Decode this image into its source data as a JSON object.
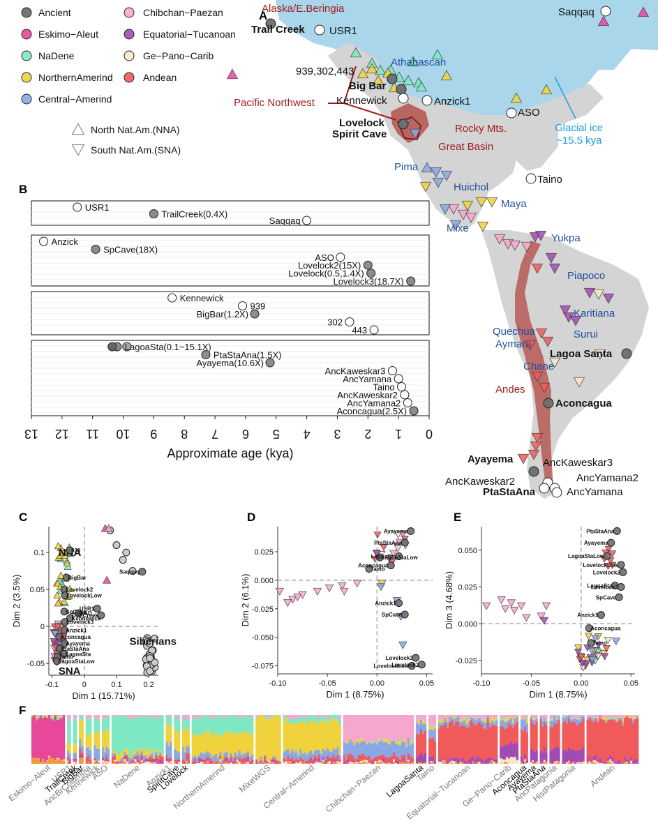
{
  "colors": {
    "Ancient": "#6e6e6e",
    "Eskimo-Aleut": "#e8479a",
    "NaDene": "#7ee8c4",
    "NorthernAmerind": "#f0d23c",
    "Central-Amerind": "#8aa8e6",
    "Chibchan-Paezan": "#f7a6d0",
    "Equatorial-Tucanoan": "#a04cb4",
    "Ge-Pano-Carib": "#f7e6c8",
    "Andean": "#f05a5a",
    "ice": "#a9d6ea",
    "land": "#d4d4d4",
    "route": "#b0403a",
    "red_label": "#9e1b1b",
    "blue_label": "#1f4e9c",
    "glacial_label": "#1aa0d8"
  },
  "panels": {
    "A": "A",
    "B": "B",
    "C": "C",
    "D": "D",
    "E": "E",
    "F": "F"
  },
  "legend": {
    "items": [
      "Ancient",
      "Eskimo−Aleut",
      "NaDene",
      "NorthernAmerind",
      "Central−Amerind",
      "Chibchan−Paezan",
      "Equatorial−Tucanoan",
      "Ge−Pano−Carib",
      "Andean"
    ],
    "keys": [
      "Ancient",
      "Eskimo-Aleut",
      "NaDene",
      "NorthernAmerind",
      "Central-Amerind",
      "Chibchan-Paezan",
      "Equatorial-Tucanoan",
      "Ge-Pano-Carib",
      "Andean"
    ],
    "nna": "North Nat.Am.(NNA)",
    "sna": "South Nat.Am.(SNA)"
  },
  "map_labels": {
    "alaska": "Alaska/E.Beringia",
    "trail_creek": "Trail Creek",
    "usr1": "USR1",
    "saqqaq": "Saqqaq",
    "athabascan": "Athabascan",
    "n939": "939,302,443",
    "big_bar": "Big Bar",
    "pacific_nw": "Pacific Northwest",
    "kennewick": "Kennewick",
    "anzick1": "Anzick1",
    "aso": "ASO",
    "lovelock": "Lovelock",
    "spirit_cave": "Spirit Cave",
    "rocky": "Rocky Mts.",
    "great_basin": "Great Basin",
    "glacial": "Glacial ice",
    "glacial_age": "~15.5 kya",
    "pima": "Pima",
    "huichol": "Huichol",
    "taino": "Taino",
    "maya": "Maya",
    "mixe": "Mixe",
    "yukpa": "Yukpa",
    "piapoco": "Piapoco",
    "karitiana": "Karitiana",
    "surui": "Surui",
    "quechua": "Quechua",
    "aymara": "Aymara",
    "lagoa_santa": "Lagoa Santa",
    "chane": "Chane",
    "andes": "Andes",
    "aconcagua": "Aconcagua",
    "ayayema": "Ayayema",
    "anckaweskar3": "AncKaweskar3",
    "anckaweskar2": "AncKaweskar2",
    "ancyamana2": "AncYamana2",
    "ptastaana": "PtaStaAna",
    "ancyamana": "AncYamana"
  },
  "chart_data": [
    {
      "panel": "B",
      "type": "scatter",
      "xlabel": "Approximate age (kya)",
      "xlim": [
        13,
        0
      ],
      "x_ticks": [
        13,
        12,
        11,
        10,
        9,
        8,
        7,
        6,
        5,
        4,
        3,
        2,
        1,
        0
      ],
      "groups": [
        {
          "points": [
            {
              "label": "USR1",
              "age": 11.5,
              "row": 0,
              "filled": false
            },
            {
              "label": "TrailCreek(0.4X)",
              "age": 9.0,
              "row": 1,
              "filled": true
            },
            {
              "label": "Saqqaq",
              "age": 4.0,
              "row": 2,
              "filled": false
            }
          ]
        },
        {
          "points": [
            {
              "label": "Anzick",
              "age": 12.6,
              "row": 0,
              "filled": false
            },
            {
              "label": "SpCave(18X)",
              "age": 10.9,
              "row": 1,
              "filled": true
            },
            {
              "label": "ASO",
              "age": 2.9,
              "row": 2,
              "filled": false
            },
            {
              "label": "Lovelock2(15X)",
              "age": 2.0,
              "row": 3,
              "filled": true
            },
            {
              "label": "Lovelock(0.5,1.4X)",
              "age": 1.9,
              "row": 4,
              "filled": true
            },
            {
              "label": "Lovelock3(18.7X)",
              "age": 0.6,
              "row": 5,
              "filled": true
            }
          ]
        },
        {
          "points": [
            {
              "label": "Kennewick",
              "age": 8.4,
              "row": 0,
              "filled": false
            },
            {
              "label": "939",
              "age": 6.1,
              "row": 1,
              "filled": false
            },
            {
              "label": "BigBar(1.2X)",
              "age": 5.7,
              "row": 2,
              "filled": true
            },
            {
              "label": "302",
              "age": 2.6,
              "row": 3,
              "filled": false
            },
            {
              "label": "443",
              "age": 1.8,
              "row": 4,
              "filled": false
            }
          ]
        },
        {
          "points": [
            {
              "label": "LagoaSta(0.1−15.1X)",
              "age": 10.2,
              "row": 0,
              "filled": true
            },
            {
              "label": "PtaStaAna(1.5X)",
              "age": 7.3,
              "row": 1,
              "filled": true
            },
            {
              "label": "Ayayema(10.6X)",
              "age": 5.2,
              "row": 2,
              "filled": true
            },
            {
              "label": "AncKaweskar3",
              "age": 1.2,
              "row": 3,
              "filled": false
            },
            {
              "label": "AncYamana",
              "age": 1.0,
              "row": 4,
              "filled": false
            },
            {
              "label": "Taino",
              "age": 0.9,
              "row": 5,
              "filled": false
            },
            {
              "label": "AncKaweskar2",
              "age": 0.8,
              "row": 6,
              "filled": false
            },
            {
              "label": "AncYamana2",
              "age": 0.7,
              "row": 7,
              "filled": false
            },
            {
              "label": "Aconcagua(2.5X)",
              "age": 0.5,
              "row": 8,
              "filled": true
            }
          ]
        }
      ]
    },
    {
      "panel": "C",
      "type": "scatter",
      "xlabel": "Dim 1 (15.71%)",
      "ylabel": "Dim 2 (3.5%)",
      "xlim": [
        -0.11,
        0.23
      ],
      "ylim": [
        -0.066,
        0.135
      ],
      "x_ticks": [
        -0.1,
        0.0,
        0.1,
        0.2
      ],
      "y_ticks": [
        -0.05,
        0.0,
        0.05,
        0.1
      ],
      "group_labels": {
        "nna": "NNA",
        "sna": "SNA",
        "siberians": "Siberians"
      },
      "points": [
        {
          "label": "939",
          "x": -0.045,
          "y": 0.103,
          "group": "Ancient"
        },
        {
          "label": "Saqqaq",
          "x": 0.18,
          "y": 0.074,
          "group": "Ancient"
        },
        {
          "label": "BigBar",
          "x": -0.055,
          "y": 0.066,
          "group": "Ancient"
        },
        {
          "label": "Lovelock2",
          "x": -0.062,
          "y": 0.05,
          "group": "Ancient"
        },
        {
          "label": "LovelockLow",
          "x": -0.06,
          "y": 0.042,
          "group": "Ancient"
        },
        {
          "label": "USR1",
          "x": 0.04,
          "y": 0.024,
          "group": "Ancient"
        },
        {
          "label": "SpCave",
          "x": -0.062,
          "y": 0.02,
          "group": "Ancient"
        },
        {
          "label": "ASO",
          "x": -0.018,
          "y": 0.018,
          "group": "Ancient"
        },
        {
          "label": "Kennewick",
          "x": -0.044,
          "y": 0.011,
          "group": "Ancient"
        },
        {
          "label": "TrailCreek",
          "x": 0.052,
          "y": 0.015,
          "group": "Ancient"
        },
        {
          "label": "Lovelock3",
          "x": -0.06,
          "y": 0.006,
          "group": "Ancient"
        },
        {
          "label": "Anzick1",
          "x": -0.062,
          "y": -0.005,
          "group": "Ancient"
        },
        {
          "label": "Aconcagua",
          "x": -0.078,
          "y": -0.014,
          "group": "Ancient"
        },
        {
          "label": "Ayayema",
          "x": -0.062,
          "y": -0.023,
          "group": "Ancient"
        },
        {
          "label": "PtaStaAna",
          "x": -0.076,
          "y": -0.03,
          "group": "Ancient"
        },
        {
          "label": "LagoaSta",
          "x": -0.062,
          "y": -0.037,
          "group": "Ancient"
        },
        {
          "label": "Taino",
          "x": -0.083,
          "y": -0.041,
          "group": "Ancient"
        },
        {
          "label": "LagoaStaLow",
          "x": -0.085,
          "y": -0.047,
          "group": "Ancient"
        }
      ]
    },
    {
      "panel": "D",
      "type": "scatter",
      "xlabel": "Dim 1 (8.75%)",
      "ylabel": "Dim 2 (6.1%)",
      "xlim": [
        -0.1,
        0.056
      ],
      "ylim": [
        -0.082,
        0.047
      ],
      "x_ticks": [
        -0.1,
        -0.05,
        0.0,
        0.05
      ],
      "x_tick_labels": [
        "-0.10",
        "-0.05",
        "0.00",
        "0.05"
      ],
      "y_ticks": [
        -0.075,
        -0.05,
        -0.025,
        0.0,
        0.025
      ],
      "y_tick_labels": [
        "-0.075",
        "-0.050",
        "-0.025",
        "0.000",
        "0.025"
      ],
      "points": [
        {
          "label": "Ayayema",
          "x": 0.034,
          "y": 0.043,
          "group": "Ancient"
        },
        {
          "label": "PtaStaAna",
          "x": 0.028,
          "y": 0.033,
          "group": "Ancient"
        },
        {
          "label": "LagoaSta",
          "x": 0.022,
          "y": 0.021,
          "group": "Ancient"
        },
        {
          "label": "LagoaStaLow",
          "x": 0.003,
          "y": 0.02,
          "group": "Ancient"
        },
        {
          "label": "Taino",
          "x": -0.008,
          "y": 0.01,
          "group": "Ancient"
        },
        {
          "label": "Aconcagua",
          "x": 0.014,
          "y": 0.013,
          "group": "Ancient"
        },
        {
          "label": "Anzick1",
          "x": 0.022,
          "y": -0.02,
          "group": "Ancient"
        },
        {
          "label": "SpCave",
          "x": 0.028,
          "y": -0.03,
          "group": "Ancient"
        },
        {
          "label": "Lovelock3",
          "x": 0.039,
          "y": -0.068,
          "group": "Ancient"
        },
        {
          "label": "Lovelock2",
          "x": 0.045,
          "y": -0.074,
          "group": "Ancient"
        },
        {
          "label": "LovelockLow",
          "x": 0.035,
          "y": -0.075,
          "group": "Ancient"
        }
      ]
    },
    {
      "panel": "E",
      "type": "scatter",
      "xlabel": "Dim 1 (8.75%)",
      "ylabel": "Dim 3 (4.68%)",
      "xlim": [
        -0.1,
        0.054
      ],
      "ylim": [
        -0.034,
        0.066
      ],
      "x_ticks": [
        -0.1,
        -0.05,
        0.0,
        0.05
      ],
      "x_tick_labels": [
        "-0.10",
        "-0.05",
        "0.00",
        "0.05"
      ],
      "y_ticks": [
        -0.025,
        0.0,
        0.025,
        0.05
      ],
      "y_tick_labels": [
        "-0.025",
        "0.000",
        "0.025",
        "0.050"
      ],
      "points": [
        {
          "label": "PtaStaAna",
          "x": 0.036,
          "y": 0.063,
          "group": "Ancient"
        },
        {
          "label": "Ayayema",
          "x": 0.03,
          "y": 0.055,
          "group": "Ancient"
        },
        {
          "label": "LagoaStaLow",
          "x": 0.026,
          "y": 0.046,
          "group": "Ancient"
        },
        {
          "label": "LovelockLow",
          "x": 0.04,
          "y": 0.04,
          "group": "Ancient"
        },
        {
          "label": "Lovelock2",
          "x": 0.042,
          "y": 0.035,
          "group": "Ancient"
        },
        {
          "label": "LagoaSta",
          "x": 0.034,
          "y": 0.026,
          "group": "Ancient"
        },
        {
          "label": "Lovelock3",
          "x": 0.04,
          "y": 0.025,
          "group": "Ancient"
        },
        {
          "label": "SpCave",
          "x": 0.038,
          "y": 0.018,
          "group": "Ancient"
        },
        {
          "label": "Anzick1",
          "x": 0.02,
          "y": 0.006,
          "group": "Ancient"
        },
        {
          "label": "Aconcagua",
          "x": 0.008,
          "y": -0.003,
          "group": "Ancient"
        },
        {
          "label": "Taino",
          "x": 0.01,
          "y": -0.013,
          "group": "Ancient"
        }
      ]
    }
  ],
  "admixture": {
    "groups": [
      {
        "label": "Eskimo−Aleut",
        "black": false
      },
      {
        "label": "USR1",
        "black": false
      },
      {
        "label": "TrailCreek",
        "black": true
      },
      {
        "label": "BigBar",
        "black": true
      },
      {
        "label": "AncBrColumbia",
        "black": false
      },
      {
        "label": "Kennewick",
        "black": false
      },
      {
        "label": "ASO",
        "black": false
      },
      {
        "label": "NaDene",
        "black": false
      },
      {
        "label": "Anzick1",
        "black": false
      },
      {
        "label": "SpiritCave",
        "black": true
      },
      {
        "label": "Lovelock",
        "black": true
      },
      {
        "label": "NorthernAmerind",
        "black": false
      },
      {
        "label": "MixeWGS",
        "black": false
      },
      {
        "label": "Central−Amerind",
        "black": false
      },
      {
        "label": "Chibchan−Paezan",
        "black": false
      },
      {
        "label": "LagoaSanta",
        "black": true
      },
      {
        "label": "Taino",
        "black": false
      },
      {
        "label": "Equatorial−Tucanoan",
        "black": false
      },
      {
        "label": "Ge−Pano−Carib",
        "black": false
      },
      {
        "label": "Aconcagua",
        "black": true
      },
      {
        "label": "Ayayema",
        "black": true
      },
      {
        "label": "PtaStaAna",
        "black": true
      },
      {
        "label": "AncPatagonia",
        "black": false
      },
      {
        "label": "HistPatagonia",
        "black": false
      },
      {
        "label": "Andean",
        "black": false
      }
    ]
  }
}
